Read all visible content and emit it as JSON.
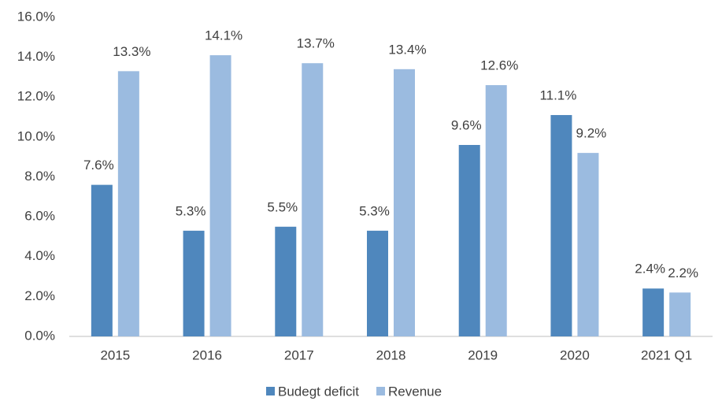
{
  "chart_data": {
    "type": "bar",
    "categories": [
      "2015",
      "2016",
      "2017",
      "2018",
      "2019",
      "2020",
      "2021 Q1"
    ],
    "series": [
      {
        "name": "Budegt deficit",
        "color": "#4f87bd",
        "values": [
          7.6,
          5.3,
          5.5,
          5.3,
          9.6,
          11.1,
          2.4
        ],
        "value_labels": [
          "7.6%",
          "5.3%",
          "5.5%",
          "5.3%",
          "9.6%",
          "11.1%",
          "2.4%"
        ]
      },
      {
        "name": "Revenue",
        "color": "#9bbbe0",
        "values": [
          13.3,
          14.1,
          13.7,
          13.4,
          12.6,
          9.2,
          2.2
        ],
        "value_labels": [
          "13.3%",
          "14.1%",
          "13.7%",
          "13.4%",
          "12.6%",
          "9.2%",
          "2.2%"
        ]
      }
    ],
    "ylim": [
      0,
      16
    ],
    "yticks": [
      {
        "value": 0,
        "label": "0.0%"
      },
      {
        "value": 2,
        "label": "2.0%"
      },
      {
        "value": 4,
        "label": "4.0%"
      },
      {
        "value": 6,
        "label": "6.0%"
      },
      {
        "value": 8,
        "label": "8.0%"
      },
      {
        "value": 10,
        "label": "10.0%"
      },
      {
        "value": 12,
        "label": "12.0%"
      },
      {
        "value": 14,
        "label": "14.0%"
      },
      {
        "value": 16,
        "label": "16.0%"
      }
    ],
    "grid": false,
    "legend": "bottom"
  }
}
